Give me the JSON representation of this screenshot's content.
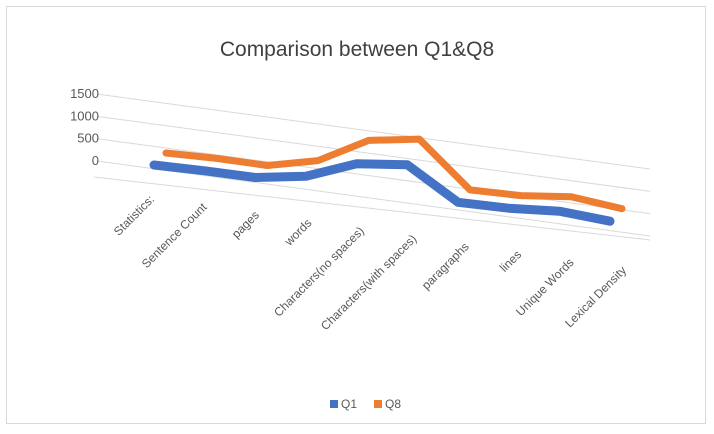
{
  "chart_data": {
    "type": "line",
    "style": "3d",
    "title": "Comparison between Q1&Q8",
    "categories": [
      "Statistics:",
      "Sentence Count",
      "pages",
      "words",
      "Characters(no spaces)",
      "Characters(with spaces)",
      "paragraphs",
      "lines",
      "Unique Words",
      "Lexical Density"
    ],
    "series": [
      {
        "name": "Q1",
        "color": "#4472C4",
        "values": [
          0,
          20,
          5,
          280,
          960,
          1150,
          25,
          40,
          160,
          30
        ]
      },
      {
        "name": "Q8",
        "color": "#ED7D31",
        "values": [
          0,
          25,
          5,
          300,
          1000,
          1200,
          30,
          45,
          180,
          35
        ]
      }
    ],
    "yticks": [
      0,
      500,
      1000,
      1500
    ],
    "ylim": [
      0,
      1500
    ],
    "grid": true,
    "legend": "bottom"
  }
}
